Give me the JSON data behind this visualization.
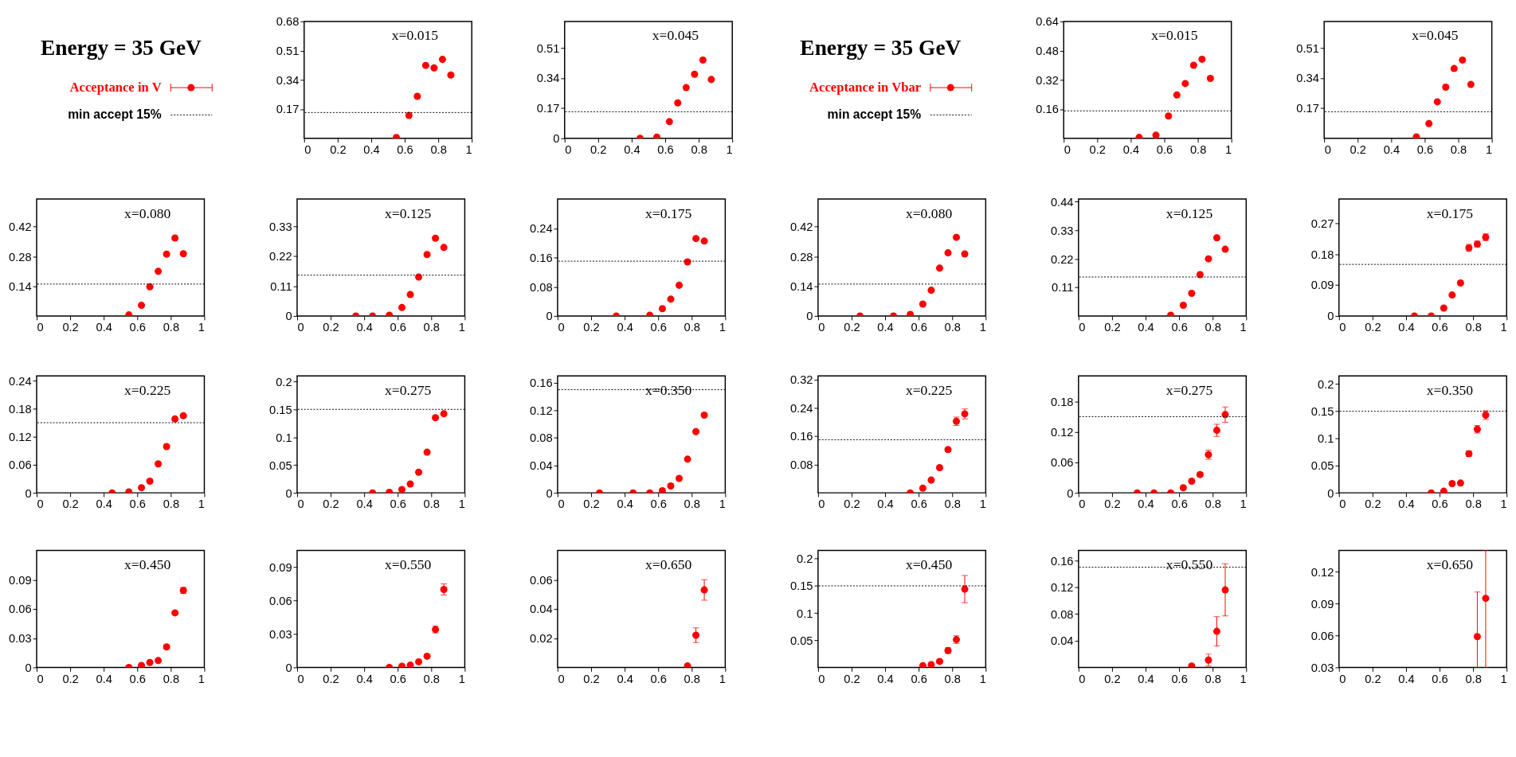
{
  "chart_data": [
    {
      "type": "other",
      "title": "Energy = 35 GeV",
      "annotations": [
        "Acceptance in V",
        "min accept 15%"
      ]
    },
    {
      "type": "scatter",
      "annotations": [
        "x=0.015"
      ],
      "color": "#ff0000",
      "marker": "circle",
      "x": [
        0.55,
        0.625,
        0.675,
        0.725,
        0.775,
        0.825,
        0.875
      ],
      "values": [
        0.005,
        0.133,
        0.244,
        0.424,
        0.41,
        0.459,
        0.368
      ],
      "xlim": [
        0,
        1
      ],
      "xticks": [
        0,
        0.2,
        0.4,
        0.6,
        0.8,
        1
      ],
      "ylim": [
        0,
        0.68
      ],
      "yticks": [
        0.17,
        0.34,
        0.51,
        0.68
      ],
      "ref_lines": [
        {
          "axis": "y",
          "value": 0.15,
          "line_style": "dotted",
          "color": "#000000"
        }
      ]
    },
    {
      "type": "scatter",
      "annotations": [
        "x=0.045"
      ],
      "color": "#ff0000",
      "marker": "circle",
      "x": [
        0.45,
        0.55,
        0.625,
        0.675,
        0.725,
        0.775,
        0.825,
        0.875
      ],
      "values": [
        0,
        0.007,
        0.094,
        0.2,
        0.286,
        0.362,
        0.442,
        0.332
      ],
      "xlim": [
        0,
        1
      ],
      "xticks": [
        0,
        0.2,
        0.4,
        0.6,
        0.8,
        1
      ],
      "ylim": [
        0,
        0.66
      ],
      "yticks": [
        0,
        0.17,
        0.34,
        0.51
      ],
      "ref_lines": [
        {
          "axis": "y",
          "value": 0.15,
          "line_style": "dotted",
          "color": "#000000"
        }
      ]
    },
    {
      "type": "other",
      "title": "Energy = 35 GeV",
      "annotations": [
        "Acceptance in Vbar",
        "min accept 15%"
      ]
    },
    {
      "type": "scatter",
      "annotations": [
        "x=0.015"
      ],
      "color": "#ff0000",
      "marker": "circle",
      "x": [
        0.45,
        0.55,
        0.625,
        0.675,
        0.725,
        0.775,
        0.825,
        0.875
      ],
      "values": [
        0.005,
        0.017,
        0.122,
        0.237,
        0.3,
        0.4,
        0.433,
        0.328
      ],
      "xlim": [
        0,
        1
      ],
      "xticks": [
        0,
        0.2,
        0.4,
        0.6,
        0.8,
        1
      ],
      "ylim": [
        0,
        0.64
      ],
      "yticks": [
        0.16,
        0.32,
        0.48,
        0.64
      ],
      "ref_lines": [
        {
          "axis": "y",
          "value": 0.15,
          "line_style": "dotted",
          "color": "#000000"
        }
      ]
    },
    {
      "type": "scatter",
      "annotations": [
        "x=0.045"
      ],
      "color": "#ff0000",
      "marker": "circle",
      "x": [
        0.55,
        0.625,
        0.675,
        0.725,
        0.775,
        0.825,
        0.875
      ],
      "values": [
        0.008,
        0.083,
        0.206,
        0.289,
        0.394,
        0.442,
        0.304
      ],
      "xlim": [
        0,
        1
      ],
      "xticks": [
        0,
        0.2,
        0.4,
        0.6,
        0.8,
        1
      ],
      "ylim": [
        0,
        0.66
      ],
      "yticks": [
        0.17,
        0.34,
        0.51
      ],
      "ref_lines": [
        {
          "axis": "y",
          "value": 0.15,
          "line_style": "dotted",
          "color": "#000000"
        }
      ]
    },
    {
      "type": "scatter",
      "annotations": [
        "x=0.080"
      ],
      "color": "#ff0000",
      "marker": "circle",
      "x": [
        0.55,
        0.625,
        0.675,
        0.725,
        0.775,
        0.825,
        0.875
      ],
      "values": [
        0.005,
        0.05,
        0.137,
        0.21,
        0.291,
        0.367,
        0.293
      ],
      "xlim": [
        0,
        1
      ],
      "xticks": [
        0,
        0.2,
        0.4,
        0.6,
        0.8,
        1
      ],
      "ylim": [
        0,
        0.55
      ],
      "yticks": [
        0.14,
        0.28,
        0.42
      ],
      "ref_lines": [
        {
          "axis": "y",
          "value": 0.15,
          "line_style": "dotted",
          "color": "#000000"
        }
      ]
    },
    {
      "type": "scatter",
      "annotations": [
        "x=0.125"
      ],
      "color": "#ff0000",
      "marker": "circle",
      "x": [
        0.35,
        0.45,
        0.55,
        0.625,
        0.675,
        0.725,
        0.775,
        0.825,
        0.875
      ],
      "values": [
        0,
        0,
        0.003,
        0.031,
        0.079,
        0.143,
        0.226,
        0.286,
        0.252
      ],
      "xlim": [
        0,
        1
      ],
      "xticks": [
        0,
        0.2,
        0.4,
        0.6,
        0.8,
        1
      ],
      "ylim": [
        0,
        0.43
      ],
      "yticks": [
        0,
        0.11,
        0.22,
        0.33
      ],
      "ref_lines": [
        {
          "axis": "y",
          "value": 0.15,
          "line_style": "dotted",
          "color": "#000000"
        }
      ]
    },
    {
      "type": "scatter",
      "annotations": [
        "x=0.175"
      ],
      "color": "#ff0000",
      "marker": "circle",
      "x": [
        0.35,
        0.55,
        0.625,
        0.675,
        0.725,
        0.775,
        0.825,
        0.875
      ],
      "values": [
        0,
        0.002,
        0.02,
        0.046,
        0.084,
        0.148,
        0.212,
        0.205
      ],
      "xlim": [
        0,
        1
      ],
      "xticks": [
        0,
        0.2,
        0.4,
        0.6,
        0.8,
        1
      ],
      "ylim": [
        0,
        0.32
      ],
      "yticks": [
        0,
        0.08,
        0.16,
        0.24
      ],
      "ref_lines": [
        {
          "axis": "y",
          "value": 0.15,
          "line_style": "dotted",
          "color": "#000000"
        }
      ]
    },
    {
      "type": "scatter",
      "annotations": [
        "x=0.080"
      ],
      "color": "#ff0000",
      "marker": "circle",
      "x": [
        0.25,
        0.45,
        0.55,
        0.625,
        0.675,
        0.725,
        0.775,
        0.825,
        0.875
      ],
      "values": [
        0,
        0,
        0.007,
        0.056,
        0.121,
        0.225,
        0.297,
        0.37,
        0.292
      ],
      "xlim": [
        0,
        1
      ],
      "xticks": [
        0,
        0.2,
        0.4,
        0.6,
        0.8,
        1
      ],
      "ylim": [
        0,
        0.55
      ],
      "yticks": [
        0,
        0.14,
        0.28,
        0.42
      ],
      "ref_lines": [
        {
          "axis": "y",
          "value": 0.15,
          "line_style": "dotted",
          "color": "#000000"
        }
      ]
    },
    {
      "type": "scatter",
      "annotations": [
        "x=0.125"
      ],
      "color": "#ff0000",
      "marker": "circle",
      "x": [
        0.55,
        0.625,
        0.675,
        0.725,
        0.775,
        0.825,
        0.875
      ],
      "values": [
        0.003,
        0.041,
        0.087,
        0.159,
        0.22,
        0.301,
        0.257
      ],
      "xlim": [
        0,
        1
      ],
      "xticks": [
        0,
        0.2,
        0.4,
        0.6,
        0.8,
        1
      ],
      "ylim": [
        0,
        0.45
      ],
      "yticks": [
        0.11,
        0.22,
        0.33,
        0.44
      ],
      "ref_lines": [
        {
          "axis": "y",
          "value": 0.15,
          "line_style": "dotted",
          "color": "#000000"
        }
      ]
    },
    {
      "type": "scatter",
      "annotations": [
        "x=0.175"
      ],
      "color": "#ff0000",
      "marker": "circle",
      "x": [
        0.45,
        0.55,
        0.625,
        0.675,
        0.725,
        0.775,
        0.825,
        0.875
      ],
      "values": [
        0,
        0,
        0.023,
        0.061,
        0.096,
        0.198,
        0.209,
        0.229
      ],
      "errors": [
        null,
        null,
        null,
        null,
        null,
        0.01,
        0.009,
        0.01
      ],
      "xlim": [
        0,
        1
      ],
      "xticks": [
        0,
        0.2,
        0.4,
        0.6,
        0.8,
        1
      ],
      "ylim": [
        0,
        0.34
      ],
      "yticks": [
        0,
        0.09,
        0.18,
        0.27
      ],
      "ref_lines": [
        {
          "axis": "y",
          "value": 0.15,
          "line_style": "dotted",
          "color": "#000000"
        }
      ]
    },
    {
      "type": "scatter",
      "annotations": [
        "x=0.225"
      ],
      "color": "#ff0000",
      "marker": "circle",
      "x": [
        0.45,
        0.55,
        0.625,
        0.675,
        0.725,
        0.775,
        0.825,
        0.875
      ],
      "values": [
        0,
        0.002,
        0.011,
        0.025,
        0.062,
        0.099,
        0.158,
        0.165
      ],
      "xlim": [
        0,
        1
      ],
      "xticks": [
        0,
        0.2,
        0.4,
        0.6,
        0.8,
        1
      ],
      "ylim": [
        0,
        0.25
      ],
      "yticks": [
        0,
        0.06,
        0.12,
        0.18,
        0.24
      ],
      "ref_lines": [
        {
          "axis": "y",
          "value": 0.15,
          "line_style": "dotted",
          "color": "#000000"
        }
      ]
    },
    {
      "type": "scatter",
      "annotations": [
        "x=0.275"
      ],
      "color": "#ff0000",
      "marker": "circle",
      "x": [
        0.45,
        0.55,
        0.625,
        0.675,
        0.725,
        0.775,
        0.825,
        0.875
      ],
      "values": [
        0,
        0.001,
        0.006,
        0.016,
        0.037,
        0.073,
        0.135,
        0.142
      ],
      "xlim": [
        0,
        1
      ],
      "xticks": [
        0,
        0.2,
        0.4,
        0.6,
        0.8,
        1
      ],
      "ylim": [
        0,
        0.21
      ],
      "yticks": [
        0,
        0.05,
        0.1,
        0.15,
        0.2
      ],
      "ref_lines": [
        {
          "axis": "y",
          "value": 0.15,
          "line_style": "dotted",
          "color": "#000000"
        }
      ]
    },
    {
      "type": "scatter",
      "annotations": [
        "x=0.350"
      ],
      "color": "#ff0000",
      "marker": "circle",
      "x": [
        0.25,
        0.45,
        0.55,
        0.625,
        0.675,
        0.725,
        0.775,
        0.825,
        0.875
      ],
      "values": [
        0,
        0,
        0,
        0.003,
        0.01,
        0.021,
        0.049,
        0.089,
        0.113
      ],
      "xlim": [
        0,
        1
      ],
      "xticks": [
        0,
        0.2,
        0.4,
        0.6,
        0.8,
        1
      ],
      "ylim": [
        0,
        0.17
      ],
      "yticks": [
        0,
        0.04,
        0.08,
        0.12,
        0.16
      ],
      "ref_lines": [
        {
          "axis": "y",
          "value": 0.15,
          "line_style": "dotted",
          "color": "#000000"
        }
      ]
    },
    {
      "type": "scatter",
      "annotations": [
        "x=0.225"
      ],
      "color": "#ff0000",
      "marker": "circle",
      "x": [
        0.55,
        0.625,
        0.675,
        0.725,
        0.775,
        0.825,
        0.875
      ],
      "values": [
        0,
        0.013,
        0.036,
        0.071,
        0.122,
        0.202,
        0.223
      ],
      "errors": [
        null,
        null,
        null,
        null,
        0.006,
        0.012,
        0.014
      ],
      "xlim": [
        0,
        1
      ],
      "xticks": [
        0,
        0.2,
        0.4,
        0.6,
        0.8,
        1
      ],
      "ylim": [
        0,
        0.33
      ],
      "yticks": [
        0.08,
        0.16,
        0.24,
        0.32
      ],
      "ref_lines": [
        {
          "axis": "y",
          "value": 0.15,
          "line_style": "dotted",
          "color": "#000000"
        }
      ]
    },
    {
      "type": "scatter",
      "annotations": [
        "x=0.275"
      ],
      "color": "#ff0000",
      "marker": "circle",
      "x": [
        0.35,
        0.45,
        0.55,
        0.625,
        0.675,
        0.725,
        0.775,
        0.825,
        0.875
      ],
      "values": [
        0,
        0,
        0,
        0.01,
        0.023,
        0.036,
        0.075,
        0.123,
        0.154
      ],
      "errors": [
        null,
        null,
        null,
        null,
        null,
        0.004,
        0.009,
        0.012,
        0.015
      ],
      "xlim": [
        0,
        1
      ],
      "xticks": [
        0,
        0.2,
        0.4,
        0.6,
        0.8,
        1
      ],
      "ylim": [
        0,
        0.23
      ],
      "yticks": [
        0,
        0.06,
        0.12,
        0.18
      ],
      "ref_lines": [
        {
          "axis": "y",
          "value": 0.15,
          "line_style": "dotted",
          "color": "#000000"
        }
      ]
    },
    {
      "type": "scatter",
      "annotations": [
        "x=0.350"
      ],
      "color": "#ff0000",
      "marker": "circle",
      "x": [
        0.55,
        0.625,
        0.675,
        0.725,
        0.775,
        0.825,
        0.875
      ],
      "values": [
        0,
        0.003,
        0.017,
        0.018,
        0.072,
        0.117,
        0.143
      ],
      "errors": [
        null,
        null,
        null,
        null,
        0.005,
        0.007,
        0.008
      ],
      "xlim": [
        0,
        1
      ],
      "xticks": [
        0,
        0.2,
        0.4,
        0.6,
        0.8,
        1
      ],
      "ylim": [
        0,
        0.215
      ],
      "yticks": [
        0,
        0.05,
        0.1,
        0.15,
        0.2
      ],
      "ref_lines": [
        {
          "axis": "y",
          "value": 0.15,
          "line_style": "dotted",
          "color": "#000000"
        }
      ]
    },
    {
      "type": "scatter",
      "annotations": [
        "x=0.450"
      ],
      "color": "#ff0000",
      "marker": "circle",
      "x": [
        0.55,
        0.625,
        0.675,
        0.725,
        0.775,
        0.825,
        0.875
      ],
      "values": [
        0,
        0.002,
        0.005,
        0.007,
        0.021,
        0.056,
        0.079
      ],
      "errors": [
        null,
        null,
        null,
        null,
        0.002,
        0.002,
        0.003
      ],
      "xlim": [
        0,
        1
      ],
      "xticks": [
        0,
        0.2,
        0.4,
        0.6,
        0.8,
        1
      ],
      "ylim": [
        0,
        0.12
      ],
      "yticks": [
        0,
        0.03,
        0.06,
        0.09
      ]
    },
    {
      "type": "scatter",
      "annotations": [
        "x=0.550"
      ],
      "color": "#ff0000",
      "marker": "circle",
      "x": [
        0.55,
        0.625,
        0.675,
        0.725,
        0.775,
        0.825,
        0.875
      ],
      "values": [
        0,
        0.001,
        0.002,
        0.005,
        0.01,
        0.034,
        0.07
      ],
      "errors": [
        null,
        null,
        null,
        null,
        null,
        0.003,
        0.005
      ],
      "xlim": [
        0,
        1
      ],
      "xticks": [
        0,
        0.2,
        0.4,
        0.6,
        0.8,
        1
      ],
      "ylim": [
        0,
        0.105
      ],
      "yticks": [
        0,
        0.03,
        0.06,
        0.09
      ]
    },
    {
      "type": "scatter",
      "annotations": [
        "x=0.650"
      ],
      "color": "#ff0000",
      "marker": "circle",
      "x": [
        0.775,
        0.825,
        0.875
      ],
      "values": [
        0.001,
        0.022,
        0.053
      ],
      "errors": [
        null,
        0.005,
        0.007
      ],
      "xlim": [
        0,
        1
      ],
      "xticks": [
        0,
        0.2,
        0.4,
        0.6,
        0.8,
        1
      ],
      "ylim": [
        0,
        0.08
      ],
      "yticks": [
        0.02,
        0.04,
        0.06
      ]
    },
    {
      "type": "scatter",
      "annotations": [
        "x=0.450"
      ],
      "color": "#ff0000",
      "marker": "circle",
      "x": [
        0.625,
        0.675,
        0.725,
        0.775,
        0.825,
        0.875
      ],
      "values": [
        0.003,
        0.005,
        0.011,
        0.031,
        0.051,
        0.144
      ],
      "errors": [
        null,
        null,
        0.003,
        0.005,
        0.007,
        0.025
      ],
      "xlim": [
        0,
        1
      ],
      "xticks": [
        0,
        0.2,
        0.4,
        0.6,
        0.8,
        1
      ],
      "ylim": [
        0,
        0.215
      ],
      "yticks": [
        0.05,
        0.1,
        0.15,
        0.2
      ],
      "ref_lines": [
        {
          "axis": "y",
          "value": 0.15,
          "line_style": "dotted",
          "color": "#000000"
        }
      ]
    },
    {
      "type": "scatter",
      "annotations": [
        "x=0.550"
      ],
      "color": "#ff0000",
      "marker": "circle",
      "x": [
        0.675,
        0.775,
        0.825,
        0.875
      ],
      "values": [
        0.002,
        0.011,
        0.054,
        0.116
      ],
      "errors": [
        null,
        0.009,
        0.022,
        0.039
      ],
      "xlim": [
        0,
        1
      ],
      "xticks": [
        0,
        0.2,
        0.4,
        0.6,
        0.8,
        1
      ],
      "ylim": [
        0,
        0.175
      ],
      "yticks": [
        0.04,
        0.08,
        0.12,
        0.16
      ],
      "ref_lines": [
        {
          "axis": "y",
          "value": 0.15,
          "line_style": "dotted",
          "color": "#000000"
        }
      ]
    },
    {
      "type": "scatter",
      "annotations": [
        "x=0.650"
      ],
      "color": "#ff0000",
      "marker": "circle",
      "x": [
        0.825,
        0.875
      ],
      "values": [
        0.059,
        0.095
      ],
      "errors": [
        [
          0.03,
          0.101
        ],
        [
          0.03,
          0.14
        ]
      ],
      "xlim": [
        0,
        1
      ],
      "xticks": [
        0,
        0.2,
        0.4,
        0.6,
        0.8,
        1
      ],
      "ylim": [
        0.03,
        0.14
      ],
      "yticks": [
        0.03,
        0.06,
        0.09,
        0.12
      ]
    }
  ]
}
